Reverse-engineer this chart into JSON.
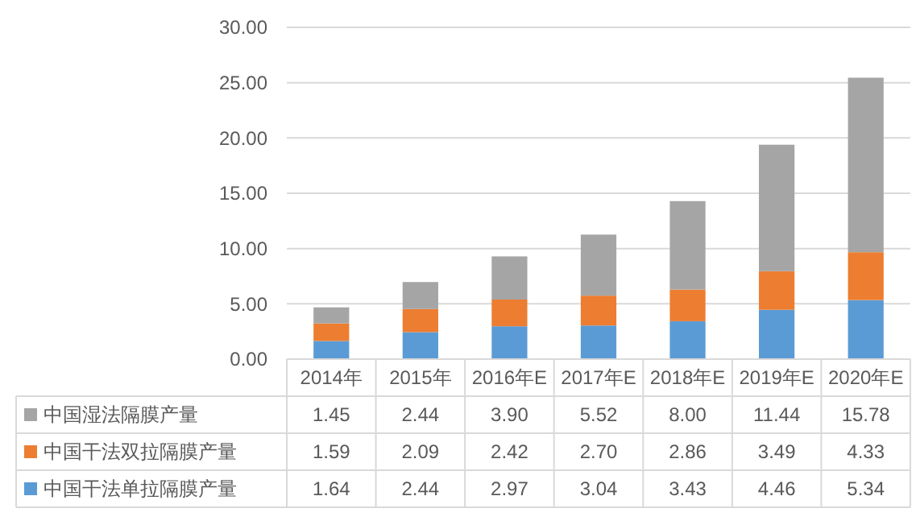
{
  "chart_data": {
    "type": "bar",
    "stacked": true,
    "categories": [
      "2014年",
      "2015年",
      "2016年E",
      "2017年E",
      "2018年E",
      "2019年E",
      "2020年E"
    ],
    "series": [
      {
        "name": "中国干法单拉隔膜产量",
        "color": "#5b9bd5",
        "values": [
          1.64,
          2.44,
          2.97,
          3.04,
          3.43,
          4.46,
          5.34
        ],
        "value_labels": [
          "1.64",
          "2.44",
          "2.97",
          "3.04",
          "3.43",
          "4.46",
          "5.34"
        ]
      },
      {
        "name": "中国干法双拉隔膜产量",
        "color": "#ed7d31",
        "values": [
          1.59,
          2.09,
          2.42,
          2.7,
          2.86,
          3.49,
          4.33
        ],
        "value_labels": [
          "1.59",
          "2.09",
          "2.42",
          "2.70",
          "2.86",
          "3.49",
          "4.33"
        ]
      },
      {
        "name": "中国湿法隔膜产量",
        "color": "#a5a5a5",
        "values": [
          1.45,
          2.44,
          3.9,
          5.52,
          8.0,
          11.44,
          15.78
        ],
        "value_labels": [
          "1.45",
          "2.44",
          "3.90",
          "5.52",
          "8.00",
          "11.44",
          "15.78"
        ]
      }
    ],
    "ylim": [
      0,
      30
    ],
    "yticks": [
      {
        "value": 0,
        "label": "0.00"
      },
      {
        "value": 5,
        "label": "5.00"
      },
      {
        "value": 10,
        "label": "10.00"
      },
      {
        "value": 15,
        "label": "15.00"
      },
      {
        "value": 20,
        "label": "20.00"
      },
      {
        "value": 25,
        "label": "25.00"
      },
      {
        "value": 30,
        "label": "30.00"
      }
    ],
    "grid": "y",
    "legend": "bottom"
  }
}
